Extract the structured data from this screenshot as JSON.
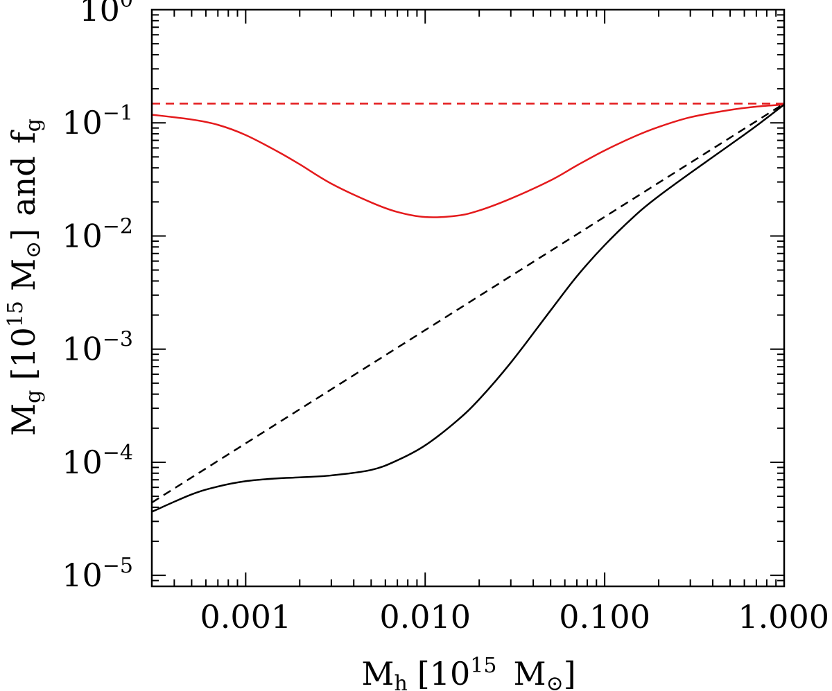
{
  "chart_data": {
    "type": "line",
    "xscale": "log",
    "yscale": "log",
    "xlim": [
      0.0003,
      1.0
    ],
    "ylim": [
      8e-06,
      1.0
    ],
    "xlabel": {
      "main": "M",
      "sub": "h",
      "bracket_open": "[",
      "pow_base": "10",
      "pow_exp": "15",
      "unit": "M",
      "sun": "⊙",
      "bracket_close": "]"
    },
    "ylabel": {
      "main": "M",
      "sub": "g",
      "bracket_open": "[",
      "pow_base": "10",
      "pow_exp": "15",
      "unit": "M",
      "sun": "⊙",
      "bracket_close": "]",
      "and": "and",
      "f": "f",
      "f_sub": "g"
    },
    "x_ticks": [
      {
        "value": 0.001,
        "label": "0.001"
      },
      {
        "value": 0.01,
        "label": "0.010"
      },
      {
        "value": 0.1,
        "label": "0.100"
      },
      {
        "value": 1.0,
        "label": "1.000"
      }
    ],
    "y_ticks": [
      {
        "value": 1e-05,
        "base": "10",
        "exp": "−5"
      },
      {
        "value": 0.0001,
        "base": "10",
        "exp": "−4"
      },
      {
        "value": 0.001,
        "base": "10",
        "exp": "−3"
      },
      {
        "value": 0.01,
        "base": "10",
        "exp": "−2"
      },
      {
        "value": 0.1,
        "base": "10",
        "exp": "−1"
      },
      {
        "value": 1.0,
        "base": "10",
        "exp": "0"
      }
    ],
    "series": [
      {
        "color": "#e41a1c",
        "dash": "solid",
        "x": [
          0.0003,
          0.0005,
          0.0007,
          0.001,
          0.0015,
          0.002,
          0.003,
          0.005,
          0.007,
          0.01,
          0.015,
          0.02,
          0.03,
          0.05,
          0.07,
          0.1,
          0.15,
          0.2,
          0.3,
          0.5,
          0.7,
          1.0
        ],
        "y": [
          0.118,
          0.107,
          0.096,
          0.078,
          0.056,
          0.043,
          0.029,
          0.0198,
          0.0163,
          0.0147,
          0.0151,
          0.0168,
          0.0214,
          0.031,
          0.042,
          0.057,
          0.077,
          0.092,
          0.112,
          0.13,
          0.139,
          0.145
        ]
      },
      {
        "color": "#e41a1c",
        "dash": "dashed",
        "x": [
          0.0003,
          1.0
        ],
        "y": [
          0.148,
          0.148
        ]
      },
      {
        "color": "#000000",
        "dash": "dashed",
        "x": [
          0.0003,
          1.0
        ],
        "y": [
          4.4e-05,
          0.148
        ]
      },
      {
        "color": "#000000",
        "dash": "solid",
        "x": [
          0.0003,
          0.0005,
          0.0007,
          0.001,
          0.0015,
          0.002,
          0.003,
          0.005,
          0.007,
          0.01,
          0.015,
          0.02,
          0.03,
          0.05,
          0.07,
          0.1,
          0.15,
          0.2,
          0.3,
          0.5,
          0.7,
          1.0
        ],
        "y": [
          3.65e-05,
          5.2e-05,
          6.1e-05,
          6.8e-05,
          7.2e-05,
          7.35e-05,
          7.65e-05,
          8.55e-05,
          0.000104,
          0.000141,
          0.000232,
          0.00036,
          0.00076,
          0.0022,
          0.0044,
          0.0083,
          0.0155,
          0.0225,
          0.036,
          0.064,
          0.094,
          0.145
        ]
      }
    ],
    "grid": false,
    "legend": "none"
  }
}
